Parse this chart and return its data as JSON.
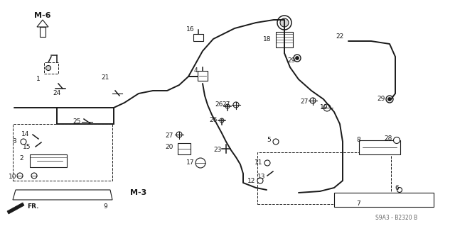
{
  "background_color": "#ffffff",
  "diagram_color": "#1a1a1a",
  "watermark": "S9A3 - B2320 B",
  "fig_width": 6.4,
  "fig_height": 3.19,
  "dpi": 100
}
